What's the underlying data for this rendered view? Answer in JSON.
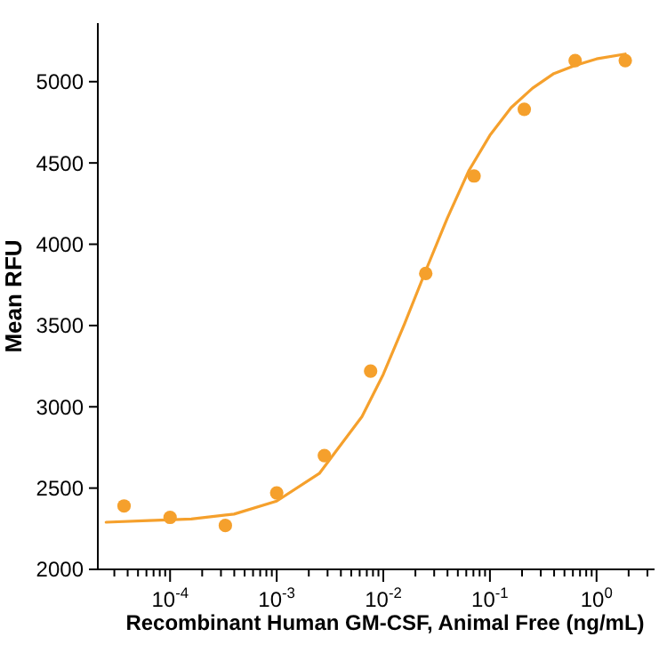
{
  "chart_data": {
    "type": "scatter",
    "xlabel": "Recombinant Human GM-CSF, Animal Free (ng/mL)",
    "ylabel": "Mean RFU",
    "log": "x",
    "grid": false,
    "xlim": [
      2.1e-05,
      3.5
    ],
    "ylim": [
      2000,
      5360
    ],
    "xticks": [
      {
        "value": 3e-05,
        "label": null
      },
      {
        "value": 4e-05,
        "label": null
      },
      {
        "value": 5e-05,
        "label": null
      },
      {
        "value": 6e-05,
        "label": null
      },
      {
        "value": 7e-05,
        "label": null
      },
      {
        "value": 8e-05,
        "label": null
      },
      {
        "value": 9e-05,
        "label": null
      },
      {
        "value": 0.0001,
        "label": "10$^{-4}$"
      },
      {
        "value": 0.0002,
        "label": null
      },
      {
        "value": 0.0003,
        "label": null
      },
      {
        "value": 0.0004,
        "label": null
      },
      {
        "value": 0.0005,
        "label": null
      },
      {
        "value": 0.0006,
        "label": null
      },
      {
        "value": 0.0007,
        "label": null
      },
      {
        "value": 0.0008,
        "label": null
      },
      {
        "value": 0.0009,
        "label": null
      },
      {
        "value": 0.001,
        "label": "10$^{-3}$"
      },
      {
        "value": 0.002,
        "label": null
      },
      {
        "value": 0.003,
        "label": null
      },
      {
        "value": 0.004,
        "label": null
      },
      {
        "value": 0.005,
        "label": null
      },
      {
        "value": 0.006,
        "label": null
      },
      {
        "value": 0.007,
        "label": null
      },
      {
        "value": 0.008,
        "label": null
      },
      {
        "value": 0.009,
        "label": null
      },
      {
        "value": 0.01,
        "label": "10$^{-2}$"
      },
      {
        "value": 0.02,
        "label": null
      },
      {
        "value": 0.03,
        "label": null
      },
      {
        "value": 0.04,
        "label": null
      },
      {
        "value": 0.05,
        "label": null
      },
      {
        "value": 0.06,
        "label": null
      },
      {
        "value": 0.07,
        "label": null
      },
      {
        "value": 0.08,
        "label": null
      },
      {
        "value": 0.09,
        "label": null
      },
      {
        "value": 0.1,
        "label": "10$^{-1}$"
      },
      {
        "value": 0.2,
        "label": null
      },
      {
        "value": 0.3,
        "label": null
      },
      {
        "value": 0.4,
        "label": null
      },
      {
        "value": 0.5,
        "label": null
      },
      {
        "value": 0.6,
        "label": null
      },
      {
        "value": 0.7,
        "label": null
      },
      {
        "value": 0.8,
        "label": null
      },
      {
        "value": 0.9,
        "label": null
      },
      {
        "value": 1,
        "label": "10$^{0}$"
      },
      {
        "value": 2,
        "label": null
      },
      {
        "value": 3,
        "label": null
      }
    ],
    "yticks": [
      2000,
      2500,
      3000,
      3500,
      4000,
      4500,
      5000
    ],
    "series": [
      {
        "color": "#f5a02c",
        "marker": "circle",
        "x": [
          3.7e-05,
          0.0001,
          0.00033,
          0.001,
          0.0028,
          0.0076,
          0.025,
          0.071,
          0.21,
          0.63,
          1.86
        ],
        "values": [
          2390,
          2320,
          2270,
          2470,
          2700,
          3220,
          3820,
          4420,
          4830,
          5130,
          5130
        ]
      },
      {
        "type": "line",
        "color": "#f5a02c",
        "marker": "none",
        "line_style": "solid",
        "x": [
          2.51e-05,
          6.31e-05,
          0.000158,
          0.000398,
          0.001,
          0.00251,
          0.00631,
          0.01,
          0.0158,
          0.0251,
          0.0398,
          0.0631,
          0.1,
          0.158,
          0.251,
          0.398,
          0.631,
          1,
          1.86
        ],
        "values": [
          2290,
          2300,
          2310,
          2340,
          2420,
          2590,
          2940,
          3200,
          3510,
          3840,
          4160,
          4450,
          4670,
          4840,
          4960,
          5050,
          5100,
          5140,
          5170
        ]
      }
    ]
  }
}
